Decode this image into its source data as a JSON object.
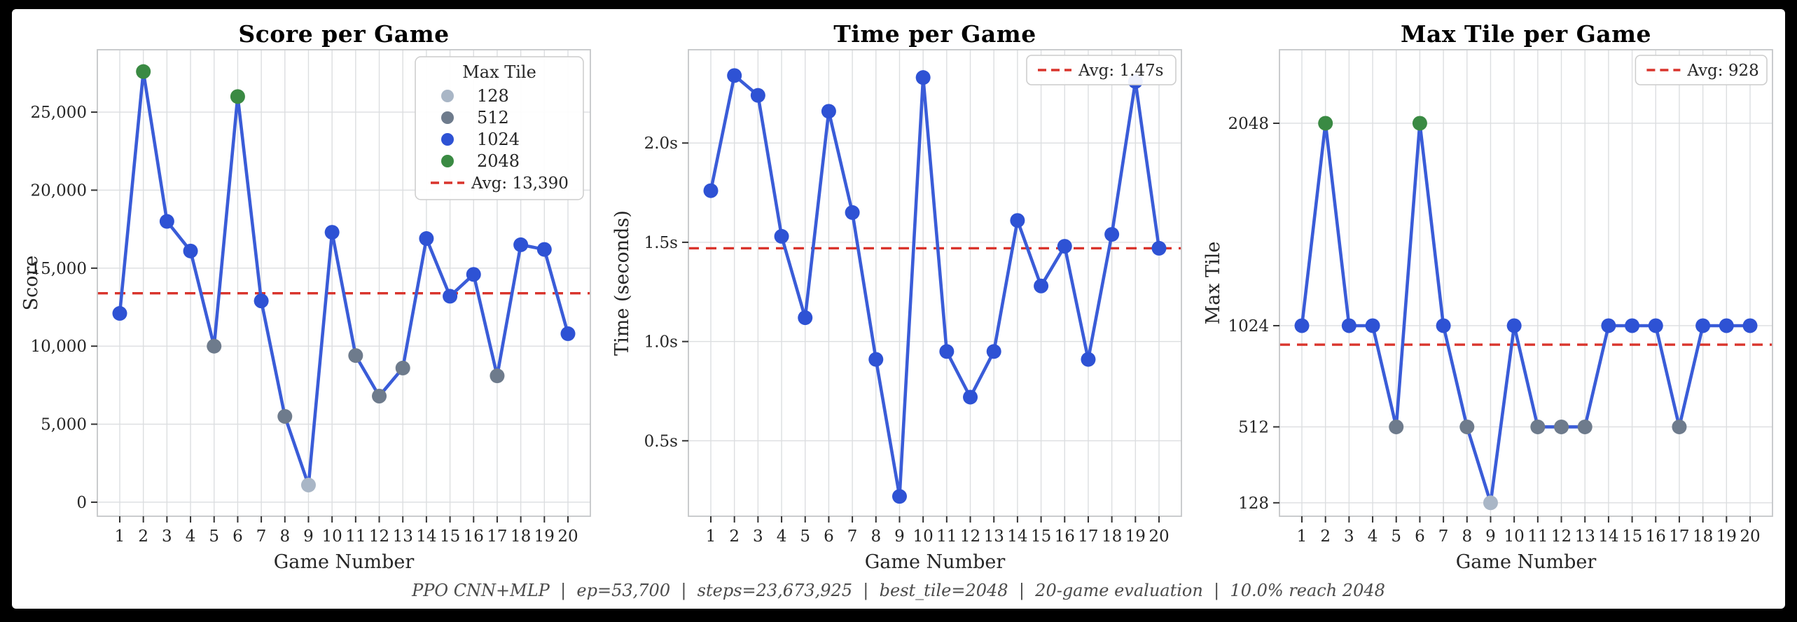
{
  "page": {
    "footer": "PPO CNN+MLP  |  ep=53,700  |  steps=23,673,925  |  best_tile=2048  |  20-game evaluation  |  10.0% reach 2048"
  },
  "colors": {
    "line_blue": "#3a5cd8",
    "tile_128": "#a9b6c6",
    "tile_512": "#6e7b8c",
    "tile_1024": "#2e52d4",
    "tile_2048": "#3a8a43",
    "avg_red": "#d9342c",
    "grid": "#dcdee0",
    "spine": "#c4c6c8",
    "tick_text": "#262626",
    "title_text": "#000000",
    "legend_border": "#cccccc",
    "legend_bg": "#ffffff"
  },
  "chart_data": [
    {
      "type": "line",
      "title": "Score per Game",
      "xlabel": "Game Number",
      "ylabel": "Score",
      "x": [
        1,
        2,
        3,
        4,
        5,
        6,
        7,
        8,
        9,
        10,
        11,
        12,
        13,
        14,
        15,
        16,
        17,
        18,
        19,
        20
      ],
      "values": [
        12100,
        27600,
        18000,
        16100,
        10000,
        26000,
        12900,
        5500,
        1100,
        17300,
        9400,
        6800,
        8600,
        16900,
        13200,
        14600,
        8100,
        16500,
        16200,
        10800
      ],
      "point_tile": [
        1024,
        2048,
        1024,
        1024,
        512,
        2048,
        1024,
        512,
        128,
        1024,
        512,
        512,
        512,
        1024,
        1024,
        1024,
        512,
        1024,
        1024,
        1024
      ],
      "avg_value": 13390,
      "avg_label": "Avg: 13,390",
      "yticks": [
        0,
        5000,
        10000,
        15000,
        20000,
        25000
      ],
      "ytick_labels": [
        "0",
        "5,000",
        "10,000",
        "15,000",
        "20,000",
        "25,000"
      ],
      "ylim": [
        -900,
        29000
      ],
      "xlim": [
        0.05,
        20.95
      ],
      "grid": true,
      "legend": {
        "position": "top-right",
        "title": "Max Tile",
        "tile_entries": [
          {
            "label": "128",
            "tile": 128
          },
          {
            "label": "512",
            "tile": 512
          },
          {
            "label": "1024",
            "tile": 1024
          },
          {
            "label": "2048",
            "tile": 2048
          }
        ]
      }
    },
    {
      "type": "line",
      "title": "Time per Game",
      "xlabel": "Game Number",
      "ylabel": "Time (seconds)",
      "x": [
        1,
        2,
        3,
        4,
        5,
        6,
        7,
        8,
        9,
        10,
        11,
        12,
        13,
        14,
        15,
        16,
        17,
        18,
        19,
        20
      ],
      "values": [
        1.76,
        2.34,
        2.24,
        1.53,
        1.12,
        2.16,
        1.65,
        0.91,
        0.22,
        2.33,
        0.95,
        0.72,
        0.95,
        1.61,
        1.28,
        1.48,
        0.91,
        1.54,
        2.31,
        1.47
      ],
      "point_tile": null,
      "avg_value": 1.47,
      "avg_label": "Avg: 1.47s",
      "yticks": [
        0.5,
        1.0,
        1.5,
        2.0
      ],
      "ytick_labels": [
        "0.5s",
        "1.0s",
        "1.5s",
        "2.0s"
      ],
      "ylim": [
        0.12,
        2.47
      ],
      "xlim": [
        0.05,
        20.95
      ],
      "grid": true,
      "legend": {
        "position": "top-right"
      }
    },
    {
      "type": "line",
      "title": "Max Tile per Game",
      "xlabel": "Game Number",
      "ylabel": "Max Tile",
      "x": [
        1,
        2,
        3,
        4,
        5,
        6,
        7,
        8,
        9,
        10,
        11,
        12,
        13,
        14,
        15,
        16,
        17,
        18,
        19,
        20
      ],
      "values": [
        1024,
        2048,
        1024,
        1024,
        512,
        2048,
        1024,
        512,
        128,
        1024,
        512,
        512,
        512,
        1024,
        1024,
        1024,
        512,
        1024,
        1024,
        1024
      ],
      "point_tile": [
        1024,
        2048,
        1024,
        1024,
        512,
        2048,
        1024,
        512,
        128,
        1024,
        512,
        512,
        512,
        1024,
        1024,
        1024,
        512,
        1024,
        1024,
        1024
      ],
      "avg_value": 928,
      "avg_label": "Avg: 928",
      "yticks": [
        128,
        512,
        1024,
        2048
      ],
      "ytick_labels": [
        "128",
        "512",
        "1024",
        "2048"
      ],
      "ylim": [
        60,
        2420
      ],
      "xlim": [
        0.05,
        20.95
      ],
      "grid": true,
      "legend": {
        "position": "top-right"
      }
    }
  ]
}
